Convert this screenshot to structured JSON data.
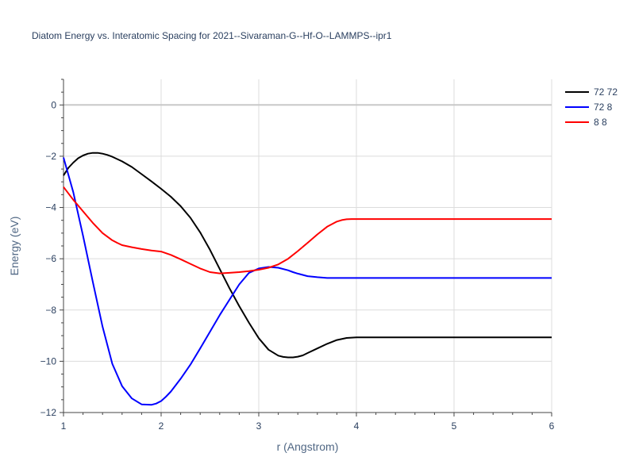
{
  "chart_data": {
    "type": "line",
    "title": "Diatom Energy vs. Interatomic Spacing for 2021--Sivaraman-G--Hf-O--LAMMPS--ipr1",
    "xlabel": "r (Angstrom)",
    "ylabel": "Energy (eV)",
    "xlim": [
      1,
      6
    ],
    "ylim": [
      -12,
      1
    ],
    "xticks": [
      1,
      2,
      3,
      4,
      5,
      6
    ],
    "yticks": [
      -12,
      -10,
      -8,
      -6,
      -4,
      -2,
      0
    ],
    "grid": true,
    "legend_position": "top-right",
    "series": [
      {
        "name": "72 72",
        "color": "#000000",
        "x": [
          1.0,
          1.05,
          1.1,
          1.15,
          1.2,
          1.25,
          1.3,
          1.35,
          1.4,
          1.45,
          1.5,
          1.6,
          1.7,
          1.8,
          1.9,
          2.0,
          2.1,
          2.2,
          2.3,
          2.4,
          2.5,
          2.6,
          2.7,
          2.8,
          2.9,
          3.0,
          3.1,
          3.2,
          3.25,
          3.3,
          3.35,
          3.4,
          3.45,
          3.5,
          3.6,
          3.7,
          3.8,
          3.9,
          4.0,
          4.5,
          5.0,
          5.5,
          6.0
        ],
        "y": [
          -2.75,
          -2.45,
          -2.25,
          -2.08,
          -1.97,
          -1.9,
          -1.87,
          -1.87,
          -1.9,
          -1.95,
          -2.02,
          -2.2,
          -2.42,
          -2.7,
          -2.98,
          -3.27,
          -3.58,
          -3.95,
          -4.4,
          -4.97,
          -5.65,
          -6.4,
          -7.15,
          -7.85,
          -8.5,
          -9.1,
          -9.55,
          -9.78,
          -9.83,
          -9.85,
          -9.85,
          -9.82,
          -9.77,
          -9.68,
          -9.5,
          -9.32,
          -9.17,
          -9.09,
          -9.07,
          -9.07,
          -9.07,
          -9.07,
          -9.07
        ]
      },
      {
        "name": "72 8",
        "color": "#0000ff",
        "x": [
          1.0,
          1.1,
          1.2,
          1.3,
          1.4,
          1.5,
          1.6,
          1.7,
          1.8,
          1.9,
          1.95,
          2.0,
          2.05,
          2.1,
          2.2,
          2.3,
          2.4,
          2.5,
          2.6,
          2.7,
          2.8,
          2.9,
          3.0,
          3.1,
          3.2,
          3.3,
          3.35,
          3.4,
          3.45,
          3.5,
          3.6,
          3.7,
          3.8,
          3.9,
          4.0,
          4.5,
          5.0,
          5.5,
          6.0
        ],
        "y": [
          -2.05,
          -3.4,
          -5.1,
          -6.9,
          -8.65,
          -10.1,
          -10.97,
          -11.45,
          -11.68,
          -11.7,
          -11.65,
          -11.55,
          -11.38,
          -11.18,
          -10.68,
          -10.13,
          -9.5,
          -8.85,
          -8.2,
          -7.6,
          -7.0,
          -6.55,
          -6.38,
          -6.32,
          -6.35,
          -6.45,
          -6.52,
          -6.58,
          -6.63,
          -6.68,
          -6.72,
          -6.75,
          -6.75,
          -6.75,
          -6.75,
          -6.75,
          -6.75,
          -6.75,
          -6.75
        ]
      },
      {
        "name": "8 8",
        "color": "#ff0000",
        "x": [
          1.0,
          1.1,
          1.2,
          1.3,
          1.4,
          1.5,
          1.55,
          1.6,
          1.7,
          1.8,
          1.9,
          2.0,
          2.1,
          2.2,
          2.3,
          2.4,
          2.5,
          2.6,
          2.7,
          2.8,
          2.9,
          3.0,
          3.1,
          3.2,
          3.3,
          3.4,
          3.5,
          3.6,
          3.7,
          3.8,
          3.85,
          3.9,
          3.95,
          4.0,
          4.5,
          5.0,
          5.5,
          6.0
        ],
        "y": [
          -3.2,
          -3.7,
          -4.15,
          -4.6,
          -5.0,
          -5.28,
          -5.38,
          -5.47,
          -5.55,
          -5.62,
          -5.68,
          -5.72,
          -5.85,
          -6.02,
          -6.2,
          -6.38,
          -6.52,
          -6.57,
          -6.55,
          -6.52,
          -6.48,
          -6.43,
          -6.35,
          -6.22,
          -6.0,
          -5.7,
          -5.38,
          -5.05,
          -4.75,
          -4.55,
          -4.49,
          -4.46,
          -4.45,
          -4.45,
          -4.45,
          -4.45,
          -4.45,
          -4.45
        ]
      }
    ]
  }
}
